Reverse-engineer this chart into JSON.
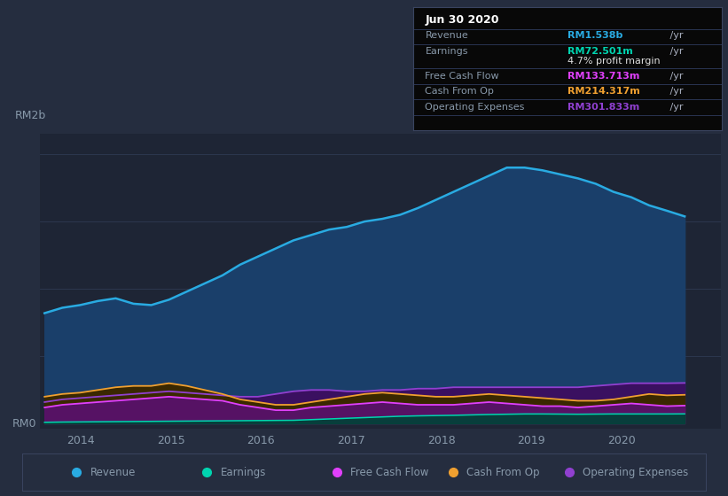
{
  "bg_color": "#1e2535",
  "plot_bg_color": "#1e2535",
  "outer_bg_color": "#252d3f",
  "grid_color": "#2e3a52",
  "text_color": "#8899aa",
  "ylabel_text": "RM2b",
  "rm0_text": "RM0",
  "revenue": [
    0.82,
    0.86,
    0.88,
    0.91,
    0.93,
    0.89,
    0.88,
    0.92,
    0.98,
    1.04,
    1.1,
    1.18,
    1.24,
    1.3,
    1.36,
    1.4,
    1.44,
    1.46,
    1.5,
    1.52,
    1.55,
    1.6,
    1.66,
    1.72,
    1.78,
    1.84,
    1.9,
    1.9,
    1.88,
    1.85,
    1.82,
    1.78,
    1.72,
    1.68,
    1.62,
    1.58,
    1.538
  ],
  "earnings": [
    0.01,
    0.012,
    0.013,
    0.014,
    0.015,
    0.016,
    0.017,
    0.018,
    0.019,
    0.02,
    0.021,
    0.022,
    0.023,
    0.024,
    0.025,
    0.03,
    0.035,
    0.04,
    0.045,
    0.05,
    0.055,
    0.058,
    0.06,
    0.062,
    0.065,
    0.068,
    0.07,
    0.072,
    0.072,
    0.071,
    0.07,
    0.071,
    0.072,
    0.072,
    0.072,
    0.072,
    0.0725
  ],
  "cash_from_op": [
    0.2,
    0.22,
    0.23,
    0.25,
    0.27,
    0.28,
    0.28,
    0.3,
    0.28,
    0.25,
    0.22,
    0.18,
    0.16,
    0.14,
    0.14,
    0.16,
    0.18,
    0.2,
    0.22,
    0.23,
    0.22,
    0.21,
    0.2,
    0.2,
    0.21,
    0.22,
    0.21,
    0.2,
    0.19,
    0.18,
    0.17,
    0.17,
    0.18,
    0.2,
    0.22,
    0.21,
    0.214
  ],
  "free_cash_flow": [
    0.12,
    0.14,
    0.15,
    0.16,
    0.17,
    0.18,
    0.19,
    0.2,
    0.19,
    0.18,
    0.17,
    0.14,
    0.12,
    0.1,
    0.1,
    0.12,
    0.13,
    0.14,
    0.15,
    0.16,
    0.15,
    0.14,
    0.14,
    0.14,
    0.15,
    0.16,
    0.15,
    0.14,
    0.13,
    0.13,
    0.12,
    0.13,
    0.14,
    0.15,
    0.14,
    0.13,
    0.134
  ],
  "operating_expenses": [
    0.16,
    0.18,
    0.19,
    0.2,
    0.21,
    0.22,
    0.23,
    0.24,
    0.23,
    0.22,
    0.21,
    0.2,
    0.2,
    0.22,
    0.24,
    0.25,
    0.25,
    0.24,
    0.24,
    0.25,
    0.25,
    0.26,
    0.26,
    0.27,
    0.27,
    0.27,
    0.27,
    0.27,
    0.27,
    0.27,
    0.27,
    0.28,
    0.29,
    0.3,
    0.3,
    0.3,
    0.302
  ],
  "revenue_line_color": "#29abe2",
  "revenue_fill_color": "#1a3f6a",
  "earnings_line_color": "#00d4b0",
  "earnings_fill_color": "#004438",
  "fcf_line_color": "#e040fb",
  "fcf_fill_color": "#5a1070",
  "cop_line_color": "#f0a030",
  "cop_fill_color": "#3a2800",
  "opex_line_color": "#9040d0",
  "opex_fill_color": "#3a1060",
  "info_box": {
    "date": "Jun 30 2020",
    "revenue_label": "Revenue",
    "revenue_value": "RM1.538b",
    "revenue_color": "#29abe2",
    "earnings_label": "Earnings",
    "earnings_value": "RM72.501m",
    "earnings_color": "#00d4b0",
    "margin_text": "4.7% profit margin",
    "margin_color": "#dddddd",
    "fcf_label": "Free Cash Flow",
    "fcf_value": "RM133.713m",
    "fcf_color": "#e040fb",
    "cashop_label": "Cash From Op",
    "cashop_value": "RM214.317m",
    "cashop_color": "#f0a030",
    "opex_label": "Operating Expenses",
    "opex_value": "RM301.833m",
    "opex_color": "#9040d0",
    "yr_color": "#aab0c0"
  },
  "legend_items": [
    {
      "label": "Revenue",
      "color": "#29abe2"
    },
    {
      "label": "Earnings",
      "color": "#00d4b0"
    },
    {
      "label": "Free Cash Flow",
      "color": "#e040fb"
    },
    {
      "label": "Cash From Op",
      "color": "#f0a030"
    },
    {
      "label": "Operating Expenses",
      "color": "#9040d0"
    }
  ],
  "xlim_left": 2013.55,
  "xlim_right": 2021.1,
  "ylim_bottom": -0.04,
  "ylim_top": 2.15,
  "xticks": [
    2014,
    2015,
    2016,
    2017,
    2018,
    2019,
    2020
  ],
  "n_points": 37,
  "x_start": 2013.6,
  "x_end": 2020.7
}
